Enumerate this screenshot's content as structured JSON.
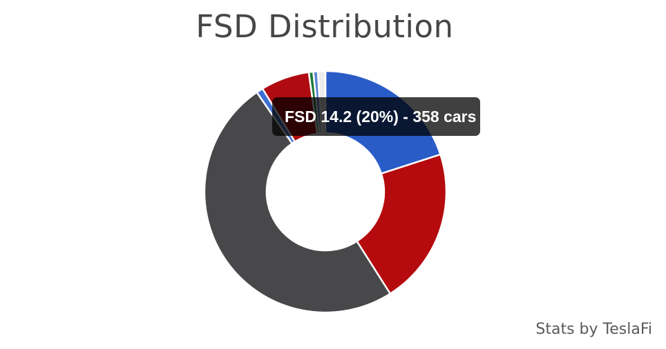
{
  "page": {
    "title": "FSD Distribution",
    "footer_credit": "Stats by TeslaFi",
    "background_color": "#ffffff",
    "title_color": "#464646",
    "footer_color": "#5a5a5a"
  },
  "tooltip": {
    "text": "FSD 14.2 (20%) - 358 cars",
    "background_color": "rgba(0,0,0,0.75)",
    "text_color": "#ffffff"
  },
  "chart_data": {
    "type": "pie",
    "variant": "doughnut",
    "title": "FSD Distribution",
    "legend_position": "none",
    "border_color": "#ffffff",
    "hovered_segment": {
      "label": "FSD 14.2",
      "percent": 20,
      "cars": 358,
      "tooltip_text": "FSD 14.2 (20%) - 358 cars"
    },
    "segments": [
      {
        "label": "FSD 14.2",
        "percent": 20.0,
        "cars": 358,
        "color": "#2a5cc8"
      },
      {
        "label": null,
        "percent": 21.0,
        "color": "#b50a0e"
      },
      {
        "label": null,
        "percent": 49.4,
        "color": "#48484a"
      },
      {
        "label": null,
        "percent": 0.9,
        "color": "#3e6fd1"
      },
      {
        "label": null,
        "percent": 6.5,
        "color": "#af0b10"
      },
      {
        "label": null,
        "percent": 0.6,
        "color": "#1f7a38"
      },
      {
        "label": null,
        "percent": 0.6,
        "color": "#5c85d6"
      },
      {
        "label": null,
        "percent": 1.0,
        "color": "#ececec"
      }
    ]
  }
}
